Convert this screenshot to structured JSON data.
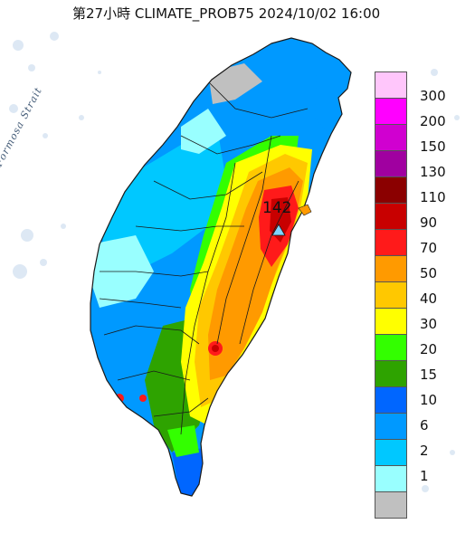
{
  "title": "第27小時  CLIMATE_PROB75 2024/10/02 16:00",
  "water_label": "Formosa Strait",
  "max_marker": {
    "value": "142",
    "icon": "triangle-icon",
    "color": "#7fd4ff"
  },
  "legend": {
    "items": [
      {
        "label": "300",
        "color": "#ffc6fb"
      },
      {
        "label": "200",
        "color": "#ff00ff"
      },
      {
        "label": "150",
        "color": "#d000d0"
      },
      {
        "label": "130",
        "color": "#a000a0"
      },
      {
        "label": "110",
        "color": "#8b0000"
      },
      {
        "label": "90",
        "color": "#c80000"
      },
      {
        "label": "70",
        "color": "#ff1a1a"
      },
      {
        "label": "50",
        "color": "#ff9a00"
      },
      {
        "label": "40",
        "color": "#ffc800"
      },
      {
        "label": "30",
        "color": "#ffff00"
      },
      {
        "label": "20",
        "color": "#33ff00"
      },
      {
        "label": "15",
        "color": "#2ea300"
      },
      {
        "label": "10",
        "color": "#0066ff"
      },
      {
        "label": "6",
        "color": "#0099ff"
      },
      {
        "label": "2",
        "color": "#00c8ff"
      },
      {
        "label": "1",
        "color": "#99ffff"
      },
      {
        "label": "",
        "color": "#c0c0c0"
      }
    ]
  },
  "colors": {
    "sea": "#ffffff",
    "border": "#1a1a1a",
    "noise": "#c8d8ec"
  }
}
